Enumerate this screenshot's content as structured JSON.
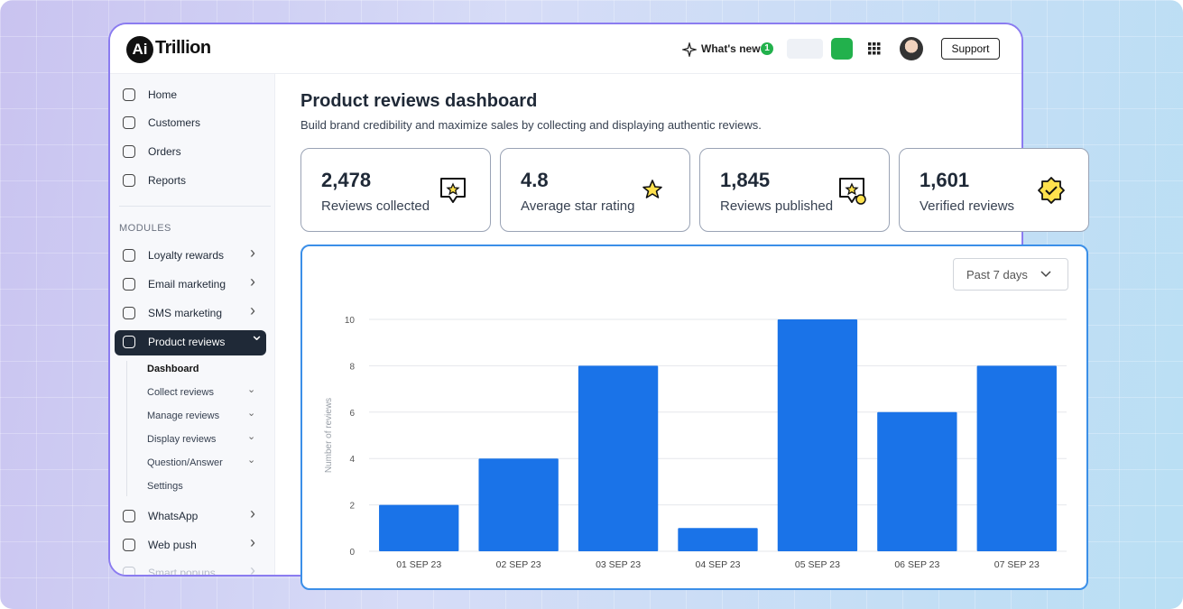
{
  "header": {
    "logo_mark": "Ai",
    "logo_text": "Trillion",
    "whats_new": "What's new",
    "badge": "1",
    "support": "Support"
  },
  "sidebar": {
    "nav": [
      "Home",
      "Customers",
      "Orders",
      "Reports"
    ],
    "section": "MODULES",
    "modules": [
      "Loyalty rewards",
      "Email marketing",
      "SMS marketing",
      "Product reviews"
    ],
    "subitems": [
      "Dashboard",
      "Collect reviews",
      "Manage reviews",
      "Display reviews",
      "Question/Answer",
      "Settings"
    ],
    "more": [
      "WhatsApp",
      "Web push",
      "Smart popups"
    ]
  },
  "page": {
    "title": "Product reviews dashboard",
    "subtitle": "Build brand credibility and maximize sales by collecting and displaying authentic reviews."
  },
  "stats": [
    {
      "value": "2,478",
      "label": "Reviews collected"
    },
    {
      "value": "4.8",
      "label": "Average star rating"
    },
    {
      "value": "1,845",
      "label": "Reviews published"
    },
    {
      "value": "1,601",
      "label": "Verified reviews"
    }
  ],
  "chart": {
    "type": "bar",
    "range": "Past 7 days",
    "y_label": "Number of reviews",
    "categories": [
      "01 SEP 23",
      "02 SEP 23",
      "03 SEP 23",
      "04 SEP 23",
      "05 SEP 23",
      "06 SEP 23",
      "07 SEP 23"
    ],
    "values": [
      2,
      4,
      8,
      1,
      10,
      6,
      8
    ],
    "color": "#1a73e8",
    "ylim": [
      0,
      10
    ],
    "yticks": [
      0,
      2,
      4,
      6,
      8,
      10
    ],
    "grid": true
  }
}
